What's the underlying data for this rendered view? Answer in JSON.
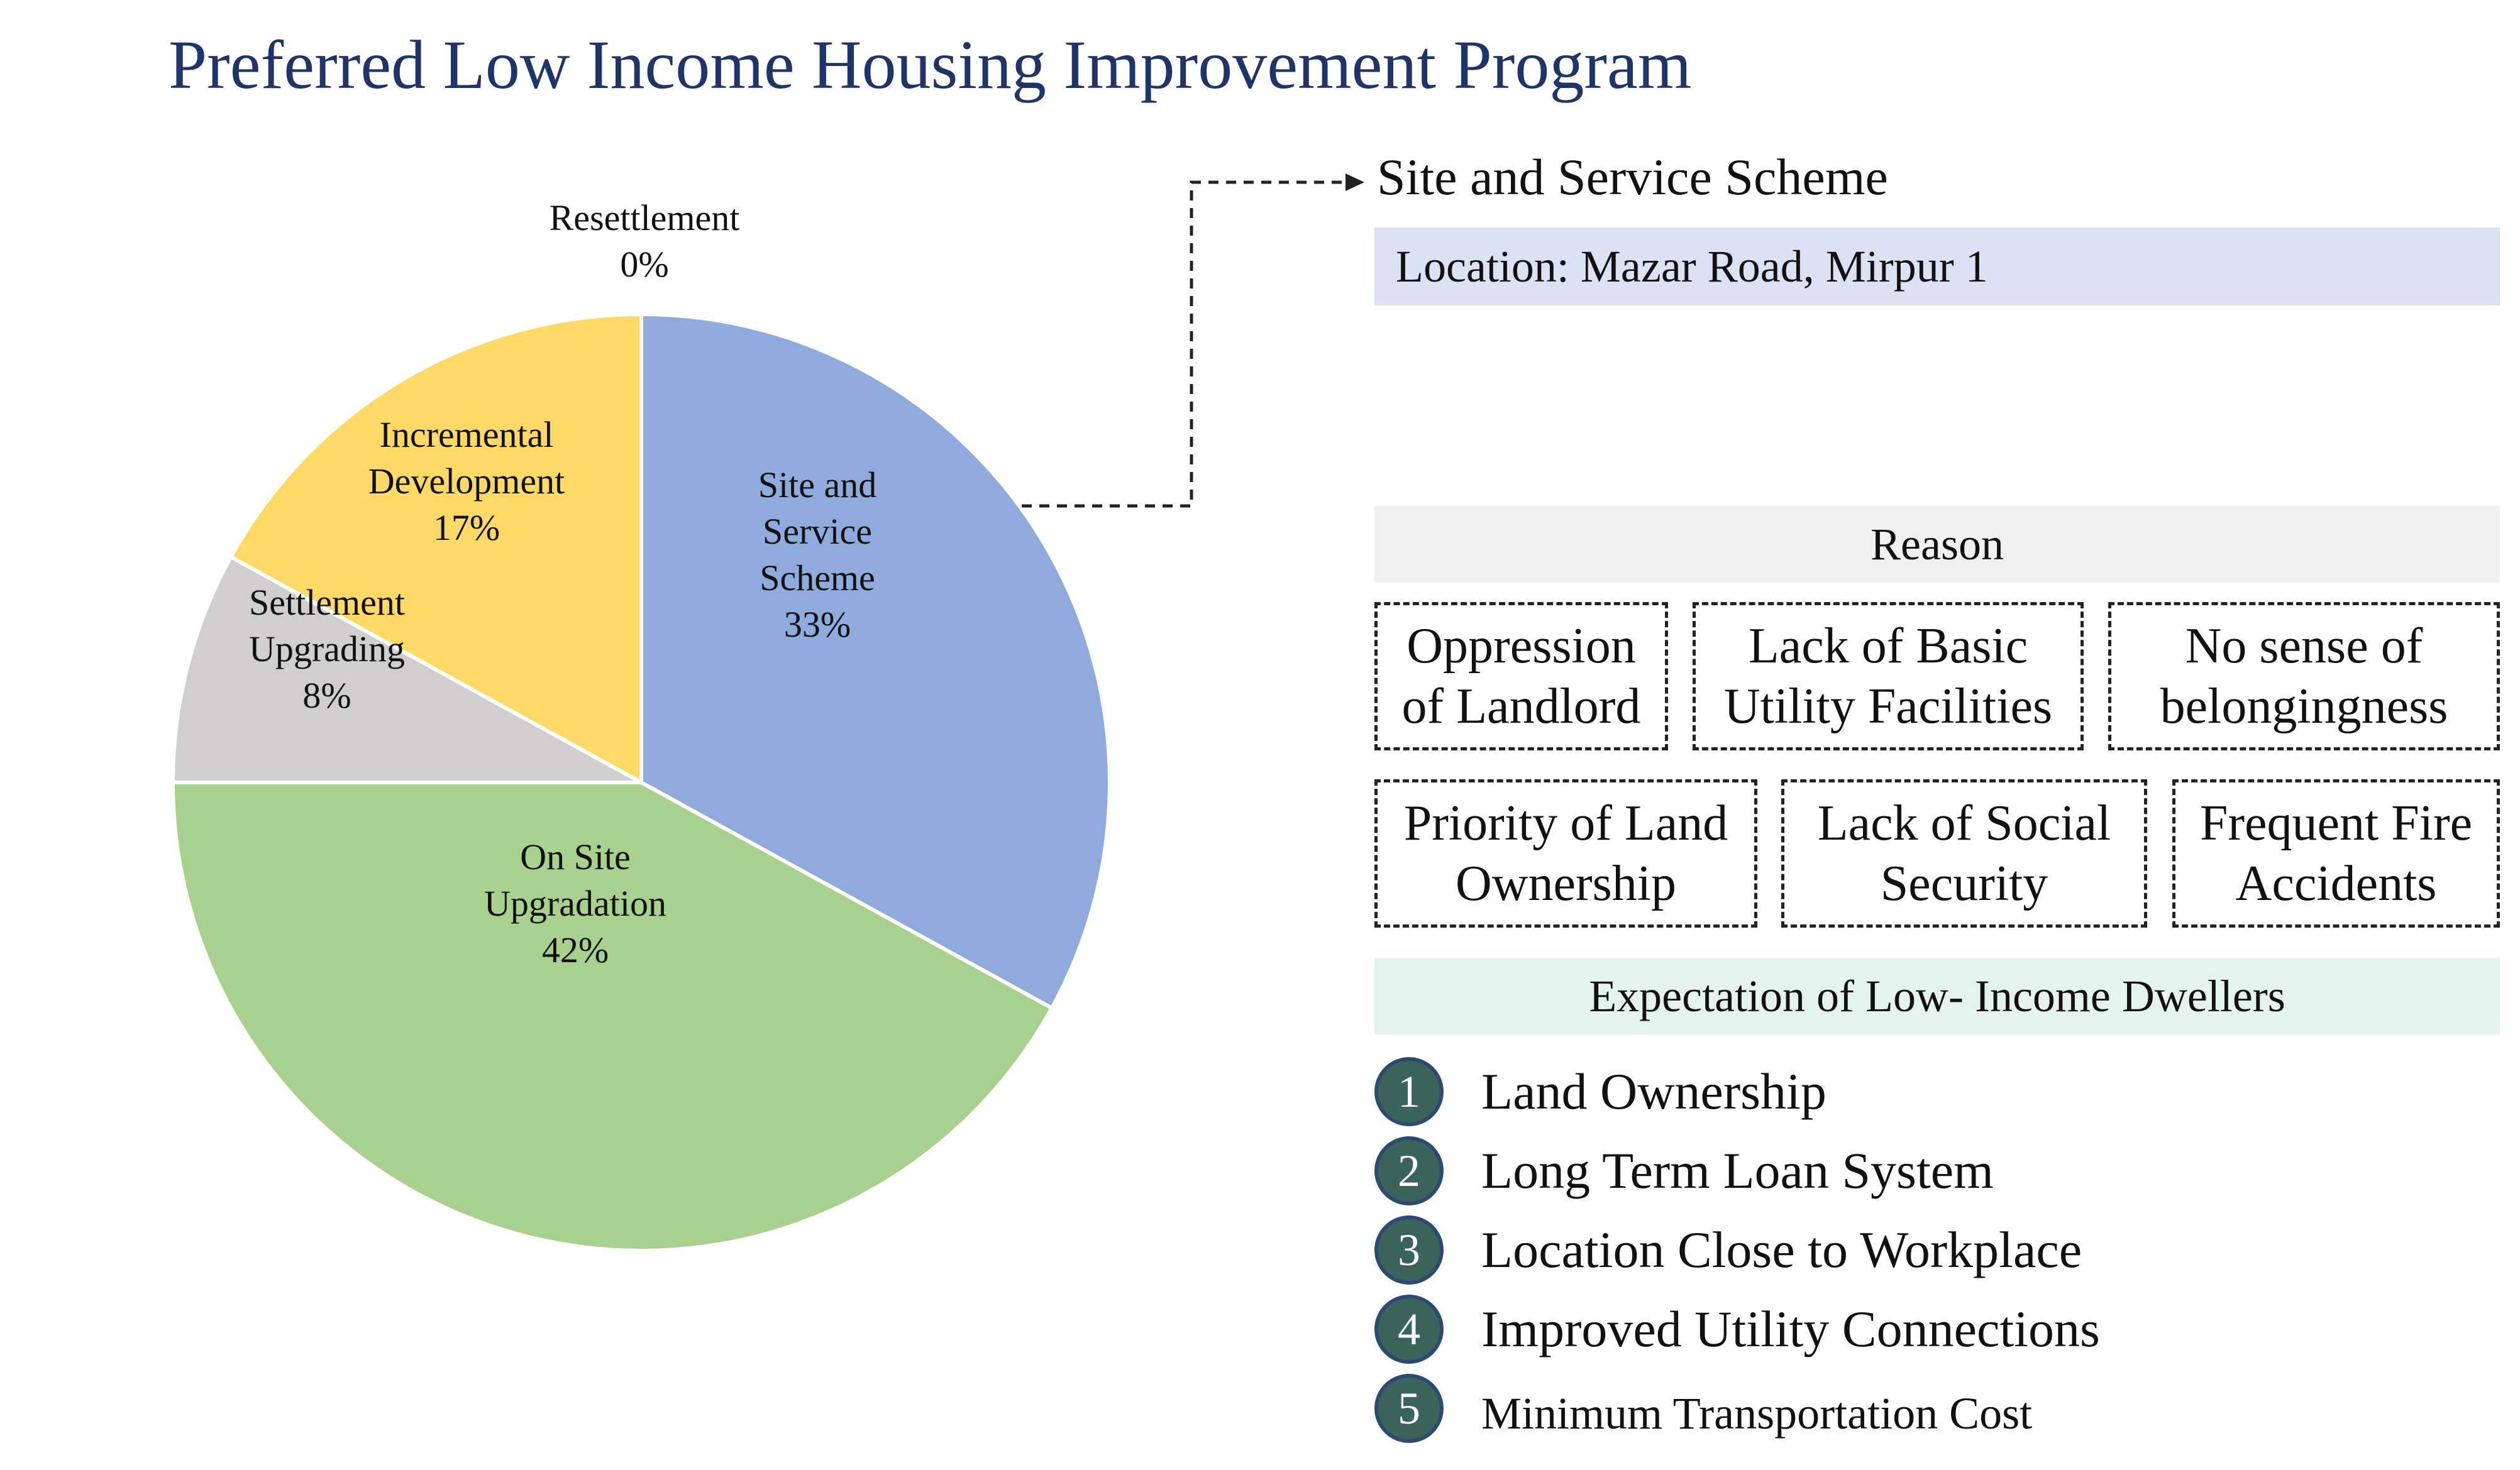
{
  "title": "Preferred Low Income Housing Improvement Program",
  "chart_data": {
    "type": "pie",
    "title": "Preferred Low Income Housing Improvement Program",
    "slices": [
      {
        "label_lines": [
          "Site and",
          "Service",
          "Scheme"
        ],
        "pct_label": "33%",
        "value": 33,
        "color": "#8faadc"
      },
      {
        "label_lines": [
          "On Site",
          "Upgradation"
        ],
        "pct_label": "42%",
        "value": 42,
        "color": "#a9d18e"
      },
      {
        "label_lines": [
          "Settlement",
          "Upgrading"
        ],
        "pct_label": "8%",
        "value": 8,
        "color": "#d0cece"
      },
      {
        "label_lines": [
          "Incremental",
          "Development"
        ],
        "pct_label": "17%",
        "value": 17,
        "color": "#ffd966"
      },
      {
        "label_lines": [
          "Resettlement"
        ],
        "pct_label": "0%",
        "value": 0,
        "color": "#f4b183"
      }
    ],
    "start_angle_deg": 0,
    "direction": "clockwise"
  },
  "callout": {
    "scheme_title": "Site and Service Scheme",
    "location": "Location: Mazar Road, Mirpur 1"
  },
  "reason": {
    "header": "Reason",
    "items": [
      [
        "Oppression",
        "of Landlord"
      ],
      [
        "Lack of Basic",
        "Utility Facilities"
      ],
      [
        "No sense of",
        "belongingness"
      ],
      [
        "Priority of Land",
        "Ownership"
      ],
      [
        "Lack of Social",
        "Security"
      ],
      [
        "Frequent Fire",
        "Accidents"
      ]
    ]
  },
  "expectation": {
    "header": "Expectation of Low- Income Dwellers",
    "items": [
      {
        "num": "1",
        "text": "Land Ownership"
      },
      {
        "num": "2",
        "text": "Long Term Loan System"
      },
      {
        "num": "3",
        "text": "Location Close to Workplace"
      },
      {
        "num": "4",
        "text": "Improved Utility Connections"
      },
      {
        "num": "5",
        "text": "Minimum Transportation Cost"
      }
    ]
  }
}
